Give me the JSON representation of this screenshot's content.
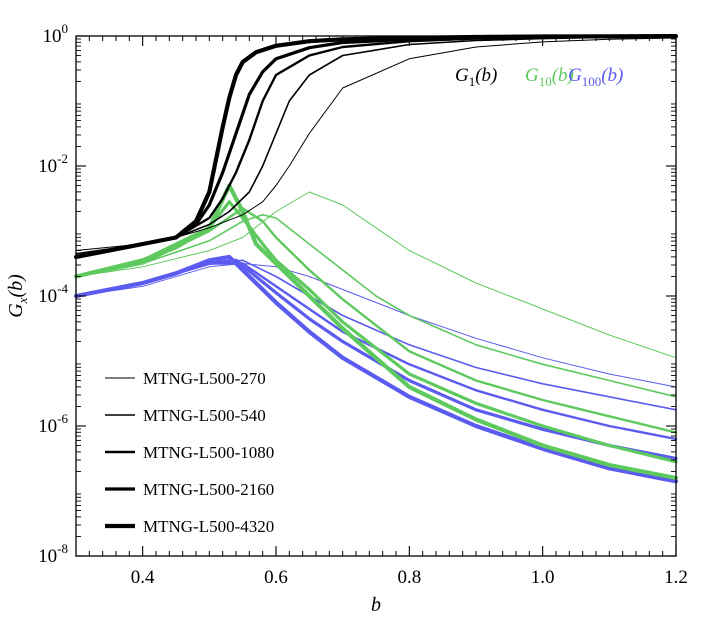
{
  "chart_data": {
    "type": "line",
    "xlabel": "b",
    "ylabel": "G",
    "ylabel_sub": "x",
    "ylabel_tail": "(b)",
    "xlim": [
      0.3,
      1.2
    ],
    "ylim_log10": [
      -8,
      0
    ],
    "yscale": "log",
    "grid": false,
    "x_ticks": [
      0.4,
      0.6,
      0.8,
      1.0,
      1.2
    ],
    "x_tick_labels": [
      "0.4",
      "0.6",
      "0.8",
      "1.0",
      "1.2"
    ],
    "y_ticks_log10": [
      -8,
      -6,
      -4,
      -2,
      0
    ],
    "y_tick_base": "10",
    "y_tick_exps": [
      "-8",
      "-6",
      "-4",
      "-2",
      "0"
    ],
    "function_labels": [
      {
        "main": "G",
        "sub": "1",
        "tail": "(b)",
        "color": "#000000"
      },
      {
        "main": "G",
        "sub": "10",
        "tail": "(b)",
        "color": "#5ec95e"
      },
      {
        "main": "G",
        "sub": "100",
        "tail": "(b)",
        "color": "#5b5bf0"
      }
    ],
    "legend": {
      "placement": "lower-left",
      "entries": [
        "MTNG-L500-270",
        "MTNG-L500-540",
        "MTNG-L500-1080",
        "MTNG-L500-2160",
        "MTNG-L500-4320"
      ],
      "line_widths": [
        1.0,
        1.6,
        2.4,
        3.2,
        4.2
      ]
    },
    "series": [
      {
        "group": "G1",
        "color": "#000000",
        "run": 270,
        "x": [
          0.3,
          0.4,
          0.45,
          0.5,
          0.55,
          0.58,
          0.6,
          0.62,
          0.65,
          0.7,
          0.8,
          0.9,
          1.0,
          1.1,
          1.2
        ],
        "log10_y": [
          -3.3,
          -3.2,
          -3.1,
          -2.95,
          -2.75,
          -2.55,
          -2.3,
          -2.0,
          -1.5,
          -0.8,
          -0.35,
          -0.17,
          -0.09,
          -0.05,
          -0.03
        ]
      },
      {
        "group": "G1",
        "color": "#000000",
        "run": 540,
        "x": [
          0.3,
          0.4,
          0.45,
          0.5,
          0.53,
          0.56,
          0.58,
          0.6,
          0.62,
          0.65,
          0.7,
          0.8,
          0.9,
          1.0,
          1.1,
          1.2
        ],
        "log10_y": [
          -3.35,
          -3.2,
          -3.1,
          -2.9,
          -2.7,
          -2.4,
          -2.0,
          -1.5,
          -1.0,
          -0.6,
          -0.3,
          -0.13,
          -0.07,
          -0.04,
          -0.02,
          -0.01
        ]
      },
      {
        "group": "G1",
        "color": "#000000",
        "run": 1080,
        "x": [
          0.3,
          0.4,
          0.45,
          0.5,
          0.52,
          0.54,
          0.56,
          0.58,
          0.6,
          0.65,
          0.7,
          0.8,
          0.9,
          1.0,
          1.1,
          1.2
        ],
        "log10_y": [
          -3.4,
          -3.2,
          -3.1,
          -2.8,
          -2.5,
          -2.1,
          -1.6,
          -1.0,
          -0.6,
          -0.3,
          -0.17,
          -0.08,
          -0.04,
          -0.02,
          -0.01,
          -0.005
        ]
      },
      {
        "group": "G1",
        "color": "#000000",
        "run": 2160,
        "x": [
          0.3,
          0.4,
          0.45,
          0.48,
          0.5,
          0.52,
          0.54,
          0.56,
          0.58,
          0.6,
          0.65,
          0.7,
          0.8,
          0.9,
          1.0,
          1.1,
          1.2
        ],
        "log10_y": [
          -3.4,
          -3.2,
          -3.1,
          -2.9,
          -2.6,
          -2.1,
          -1.5,
          -0.9,
          -0.55,
          -0.35,
          -0.18,
          -0.1,
          -0.05,
          -0.03,
          -0.015,
          -0.01,
          -0.005
        ]
      },
      {
        "group": "G1",
        "color": "#000000",
        "run": 4320,
        "x": [
          0.3,
          0.4,
          0.45,
          0.48,
          0.5,
          0.51,
          0.52,
          0.53,
          0.54,
          0.55,
          0.57,
          0.6,
          0.65,
          0.7,
          0.8,
          0.9,
          1.0,
          1.1,
          1.2
        ],
        "log10_y": [
          -3.4,
          -3.2,
          -3.1,
          -2.85,
          -2.4,
          -1.9,
          -1.4,
          -0.95,
          -0.6,
          -0.4,
          -0.25,
          -0.15,
          -0.08,
          -0.05,
          -0.03,
          -0.015,
          -0.008,
          -0.004,
          -0.002
        ]
      },
      {
        "group": "G10",
        "color": "#5ec95e",
        "run": 270,
        "x": [
          0.3,
          0.4,
          0.5,
          0.55,
          0.6,
          0.65,
          0.7,
          0.75,
          0.8,
          0.9,
          1.0,
          1.1,
          1.2
        ],
        "log10_y": [
          -3.7,
          -3.55,
          -3.3,
          -3.1,
          -2.7,
          -2.4,
          -2.6,
          -2.95,
          -3.3,
          -3.8,
          -4.2,
          -4.6,
          -4.95
        ]
      },
      {
        "group": "G10",
        "color": "#5ec95e",
        "run": 540,
        "x": [
          0.3,
          0.4,
          0.5,
          0.55,
          0.58,
          0.6,
          0.65,
          0.7,
          0.75,
          0.8,
          0.9,
          1.0,
          1.1,
          1.2
        ],
        "log10_y": [
          -3.7,
          -3.5,
          -3.15,
          -2.85,
          -2.75,
          -2.8,
          -3.2,
          -3.6,
          -4.0,
          -4.3,
          -4.75,
          -5.05,
          -5.3,
          -5.55
        ]
      },
      {
        "group": "G10",
        "color": "#5ec95e",
        "run": 1080,
        "x": [
          0.3,
          0.4,
          0.5,
          0.55,
          0.58,
          0.6,
          0.65,
          0.7,
          0.75,
          0.8,
          0.9,
          1.0,
          1.1,
          1.2
        ],
        "log10_y": [
          -3.7,
          -3.5,
          -3.0,
          -2.65,
          -2.85,
          -3.1,
          -3.6,
          -4.05,
          -4.45,
          -4.85,
          -5.3,
          -5.6,
          -5.85,
          -6.1
        ]
      },
      {
        "group": "G10",
        "color": "#5ec95e",
        "run": 2160,
        "x": [
          0.3,
          0.4,
          0.5,
          0.53,
          0.55,
          0.58,
          0.6,
          0.65,
          0.7,
          0.75,
          0.8,
          0.9,
          1.0,
          1.1,
          1.2
        ],
        "log10_y": [
          -3.7,
          -3.45,
          -2.95,
          -2.55,
          -2.8,
          -3.2,
          -3.45,
          -3.9,
          -4.4,
          -4.8,
          -5.2,
          -5.65,
          -6.0,
          -6.3,
          -6.55
        ]
      },
      {
        "group": "G10",
        "color": "#5ec95e",
        "run": 4320,
        "x": [
          0.3,
          0.4,
          0.45,
          0.5,
          0.53,
          0.55,
          0.57,
          0.6,
          0.65,
          0.7,
          0.75,
          0.8,
          0.9,
          1.0,
          1.1,
          1.2
        ],
        "log10_y": [
          -3.7,
          -3.45,
          -3.25,
          -2.95,
          -2.3,
          -2.7,
          -3.2,
          -3.5,
          -4.0,
          -4.5,
          -4.95,
          -5.4,
          -5.9,
          -6.3,
          -6.6,
          -6.8
        ]
      },
      {
        "group": "G100",
        "color": "#5b5bf0",
        "run": 270,
        "x": [
          0.3,
          0.4,
          0.5,
          0.55,
          0.6,
          0.65,
          0.7,
          0.8,
          0.9,
          1.0,
          1.1,
          1.2
        ],
        "log10_y": [
          -4.0,
          -3.85,
          -3.55,
          -3.5,
          -3.55,
          -3.7,
          -3.9,
          -4.3,
          -4.65,
          -4.95,
          -5.2,
          -5.4
        ]
      },
      {
        "group": "G100",
        "color": "#5b5bf0",
        "run": 540,
        "x": [
          0.3,
          0.4,
          0.5,
          0.55,
          0.6,
          0.65,
          0.7,
          0.8,
          0.9,
          1.0,
          1.1,
          1.2
        ],
        "log10_y": [
          -4.0,
          -3.8,
          -3.5,
          -3.45,
          -3.7,
          -4.0,
          -4.3,
          -4.75,
          -5.1,
          -5.35,
          -5.55,
          -5.75
        ]
      },
      {
        "group": "G100",
        "color": "#5b5bf0",
        "run": 1080,
        "x": [
          0.3,
          0.4,
          0.5,
          0.55,
          0.6,
          0.65,
          0.7,
          0.8,
          0.9,
          1.0,
          1.1,
          1.2
        ],
        "log10_y": [
          -4.0,
          -3.8,
          -3.5,
          -3.5,
          -3.85,
          -4.2,
          -4.55,
          -5.05,
          -5.45,
          -5.75,
          -6.0,
          -6.2
        ]
      },
      {
        "group": "G100",
        "color": "#5b5bf0",
        "run": 2160,
        "x": [
          0.3,
          0.4,
          0.5,
          0.54,
          0.6,
          0.65,
          0.7,
          0.8,
          0.9,
          1.0,
          1.1,
          1.2
        ],
        "log10_y": [
          -4.0,
          -3.8,
          -3.5,
          -3.45,
          -3.95,
          -4.35,
          -4.7,
          -5.3,
          -5.75,
          -6.05,
          -6.3,
          -6.5
        ]
      },
      {
        "group": "G100",
        "color": "#5b5bf0",
        "run": 4320,
        "x": [
          0.3,
          0.4,
          0.45,
          0.5,
          0.53,
          0.55,
          0.6,
          0.65,
          0.7,
          0.8,
          0.9,
          1.0,
          1.1,
          1.2
        ],
        "log10_y": [
          -4.0,
          -3.8,
          -3.65,
          -3.45,
          -3.4,
          -3.6,
          -4.1,
          -4.55,
          -4.95,
          -5.55,
          -6.0,
          -6.35,
          -6.65,
          -6.85
        ]
      }
    ]
  }
}
